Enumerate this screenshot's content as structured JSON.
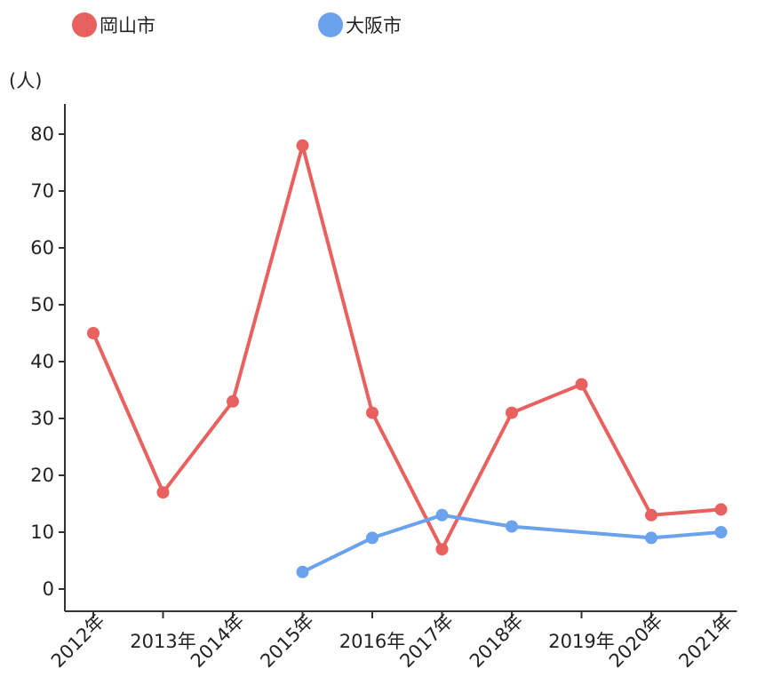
{
  "chart_data": {
    "type": "line",
    "ylabel": "(人)",
    "ylim": [
      -5,
      85
    ],
    "yticks": [
      0,
      10,
      20,
      30,
      40,
      50,
      60,
      70,
      80
    ],
    "categories": [
      "2012年",
      "2013年",
      "2014年",
      "2015年",
      "2016年",
      "2017年",
      "2018年",
      "2019年",
      "2020年",
      "2021年"
    ],
    "series": [
      {
        "name": "岡山市",
        "color": "#e8615f",
        "values": [
          45,
          17,
          33,
          78,
          31,
          7,
          31,
          36,
          13,
          14
        ]
      },
      {
        "name": "大阪市",
        "color": "#6aa2ee",
        "values": [
          null,
          null,
          null,
          3,
          9,
          13,
          11,
          null,
          9,
          10
        ]
      }
    ],
    "legend_position": "top-left",
    "grid": false
  }
}
